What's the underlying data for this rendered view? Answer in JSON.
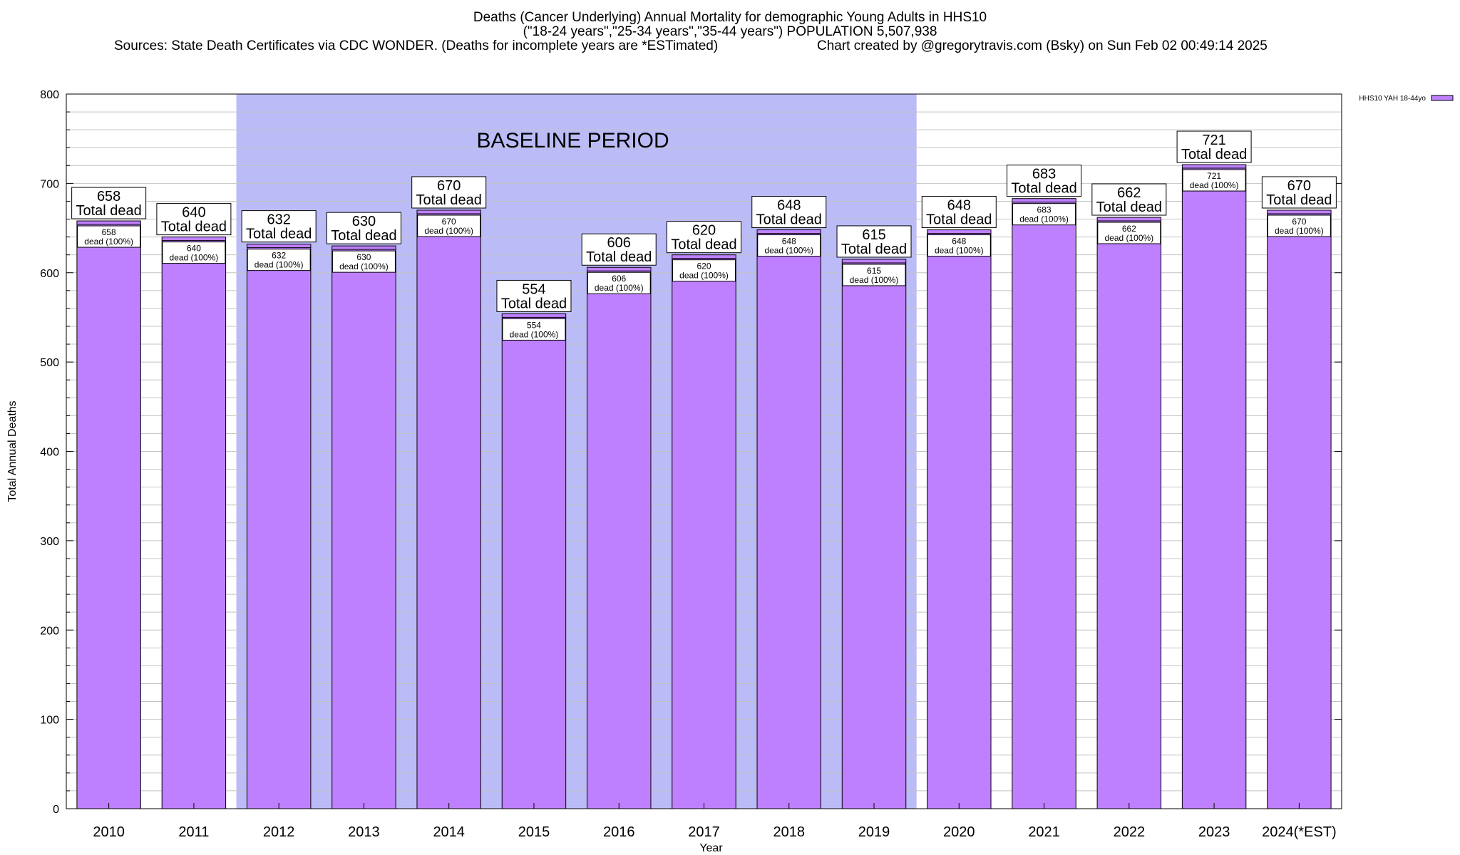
{
  "chart_data": {
    "type": "bar",
    "title_lines": [
      "Deaths (Cancer Underlying) Annual Mortality for demographic Young Adults in HHS10",
      "(\"18-24 years\",\"25-34 years\",\"35-44 years\") POPULATION 5,507,938"
    ],
    "source_text": "Sources: State Death Certificates via CDC WONDER. (Deaths for incomplete years are *ESTimated)",
    "credit_text": "Chart created by @gregorytravis.com (Bsky) on Sun Feb 02 00:49:14 2025",
    "xlabel": "Year",
    "ylabel": "Total Annual Deaths",
    "ylim": [
      0,
      800
    ],
    "yticks": [
      0,
      100,
      200,
      300,
      400,
      500,
      600,
      700,
      800
    ],
    "categories": [
      "2010",
      "2011",
      "2012",
      "2013",
      "2014",
      "2015",
      "2016",
      "2017",
      "2018",
      "2019",
      "2020",
      "2021",
      "2022",
      "2023",
      "2024(*EST)"
    ],
    "series": [
      {
        "name": "HHS10 YAH 18-44yo",
        "color": "#bf80ff",
        "values": [
          658,
          640,
          632,
          630,
          670,
          554,
          606,
          620,
          648,
          615,
          648,
          683,
          662,
          721,
          670
        ]
      }
    ],
    "total_label_suffix": "Total dead",
    "inner_label_suffix": "dead (100%)",
    "baseline_period": {
      "label": "BASELINE PERIOD",
      "start": "2012",
      "end": "2019",
      "color": "#bbbbf8"
    },
    "legend_position": "top-right",
    "grid": true
  }
}
